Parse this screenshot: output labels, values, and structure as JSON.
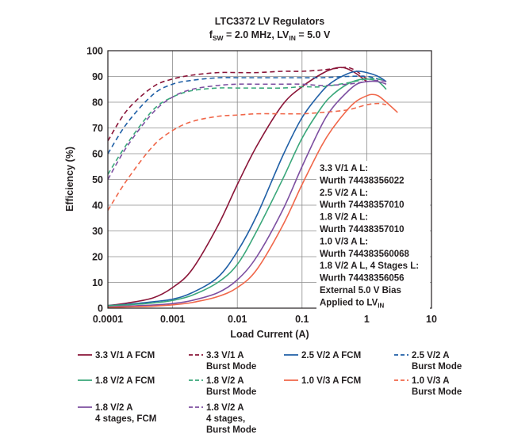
{
  "chart_data": {
    "type": "line",
    "title": "LTC3372 LV Regulators",
    "subtitle": {
      "p1": "f",
      "p1sub": "SW",
      "p2": " = 2.0 MHz, LV",
      "p2sub": "IN",
      "p3": " = 5.0 V"
    },
    "xlabel": "Load Current (A)",
    "ylabel": "Efficiency (%)",
    "x_scale": "log",
    "xlim": [
      0.0001,
      10
    ],
    "ylim": [
      0,
      100
    ],
    "grid": true,
    "x_ticks": [
      {
        "v": 0.0001,
        "label": "0.0001"
      },
      {
        "v": 0.001,
        "label": "0.001"
      },
      {
        "v": 0.01,
        "label": "0.01"
      },
      {
        "v": 0.1,
        "label": "0.1"
      },
      {
        "v": 1,
        "label": "1"
      },
      {
        "v": 10,
        "label": "10"
      }
    ],
    "y_ticks": [
      0,
      10,
      20,
      30,
      40,
      50,
      60,
      70,
      80,
      90,
      100
    ],
    "annotations": [
      "3.3 V/1 A L:",
      "Wurth 74438356022",
      "2.5 V/2 A L:",
      "Wurth 74438357010",
      "1.8 V/2 A L:",
      "Wurth 74438357010",
      "1.0 V/3 A L:",
      "Wurth 744383560068",
      "1.8 V/2 A L, 4 Stages L:",
      "Wurth 74438356056",
      "External 5.0 V Bias"
    ],
    "annotation_last": {
      "text": "Applied to LV",
      "sub": "IN"
    },
    "series": [
      {
        "name": "3.3 V/1 A FCM",
        "color": "#8a1538",
        "dash": "solid",
        "x": [
          0.0001,
          0.0002,
          0.0005,
          0.001,
          0.002,
          0.005,
          0.01,
          0.02,
          0.05,
          0.1,
          0.2,
          0.3,
          0.4,
          0.5,
          0.7,
          1.0
        ],
        "y": [
          1,
          2,
          4,
          8,
          15,
          32,
          48,
          63,
          79,
          86,
          91,
          93,
          93.5,
          93,
          91,
          88
        ]
      },
      {
        "name": "3.3 V/1 A Burst Mode",
        "color": "#8a1538",
        "dash": "dashed",
        "x": [
          0.0001,
          0.0002,
          0.0005,
          0.001,
          0.002,
          0.005,
          0.01,
          0.02,
          0.05,
          0.1,
          0.2,
          0.3,
          0.5,
          0.7,
          1.0
        ],
        "y": [
          65,
          77,
          86,
          89,
          90.5,
          91.5,
          91.5,
          91.5,
          92,
          92,
          92.5,
          93,
          93.5,
          92,
          89
        ]
      },
      {
        "name": "2.5 V/2 A FCM",
        "color": "#1f5fa6",
        "dash": "solid",
        "x": [
          0.0001,
          0.0002,
          0.0005,
          0.001,
          0.002,
          0.005,
          0.01,
          0.02,
          0.05,
          0.1,
          0.2,
          0.3,
          0.5,
          0.7,
          1.0,
          1.5,
          2.0
        ],
        "y": [
          1,
          1.5,
          2.5,
          3.5,
          6,
          12,
          22,
          36,
          59,
          74,
          84,
          88,
          91,
          92,
          91.5,
          90,
          88
        ]
      },
      {
        "name": "2.5 V/2 A Burst Mode",
        "color": "#1f5fa6",
        "dash": "dashed",
        "x": [
          0.0001,
          0.0002,
          0.0005,
          0.001,
          0.002,
          0.005,
          0.01,
          0.02,
          0.05,
          0.1,
          0.2,
          0.5,
          1.0,
          1.5,
          2.0
        ],
        "y": [
          60,
          72,
          83,
          87,
          88.5,
          89.5,
          89.5,
          89.5,
          89.5,
          89.5,
          89.5,
          90,
          90,
          89,
          88
        ]
      },
      {
        "name": "1.8 V/2 A FCM",
        "color": "#3aa77a",
        "dash": "solid",
        "x": [
          0.0001,
          0.0002,
          0.0005,
          0.001,
          0.002,
          0.005,
          0.01,
          0.02,
          0.05,
          0.1,
          0.2,
          0.3,
          0.5,
          0.7,
          1.0,
          1.5,
          2.0
        ],
        "y": [
          1,
          1.3,
          2,
          3,
          5,
          10,
          17,
          30,
          50,
          66,
          78,
          83,
          87,
          88.5,
          89,
          88,
          85
        ]
      },
      {
        "name": "1.8 V/2 A Burst Mode",
        "color": "#3aa77a",
        "dash": "dashed",
        "x": [
          0.0001,
          0.0002,
          0.0005,
          0.001,
          0.002,
          0.005,
          0.01,
          0.02,
          0.05,
          0.1,
          0.2,
          0.5,
          1.0,
          1.5,
          2.0
        ],
        "y": [
          52,
          64,
          77,
          82,
          84.5,
          85.5,
          85.5,
          85.5,
          85.5,
          86,
          86,
          87.5,
          89,
          89,
          88
        ]
      },
      {
        "name": "1.8 V/2 A 4 stages, FCM",
        "color": "#7d4fa1",
        "dash": "solid",
        "x": [
          0.0001,
          0.0002,
          0.0005,
          0.001,
          0.002,
          0.005,
          0.01,
          0.02,
          0.05,
          0.1,
          0.2,
          0.3,
          0.5,
          0.7,
          1.0,
          1.5,
          2.0
        ],
        "y": [
          0.5,
          0.8,
          1.2,
          1.8,
          3,
          6,
          11,
          20,
          38,
          55,
          71,
          78,
          84,
          87,
          88,
          88,
          87
        ]
      },
      {
        "name": "1.8 V/2 A 4 stages, Burst Mode",
        "color": "#7d4fa1",
        "dash": "dashed",
        "x": [
          0.0001,
          0.0002,
          0.0005,
          0.001,
          0.002,
          0.005,
          0.01,
          0.02,
          0.05,
          0.1,
          0.2,
          0.5,
          1.0,
          1.5,
          2.0
        ],
        "y": [
          50,
          63,
          76,
          82,
          85,
          86.5,
          87,
          87,
          87,
          87,
          86.5,
          87,
          88,
          88.5,
          88
        ]
      },
      {
        "name": "1.0 V/3 A FCM",
        "color": "#f0674a",
        "dash": "solid",
        "x": [
          0.0001,
          0.0002,
          0.0005,
          0.001,
          0.002,
          0.005,
          0.01,
          0.02,
          0.05,
          0.1,
          0.2,
          0.3,
          0.5,
          0.7,
          1.0,
          1.2,
          1.5,
          2.0,
          3.0
        ],
        "y": [
          0.3,
          0.5,
          0.8,
          1.3,
          2.2,
          4.5,
          8,
          15,
          32,
          48,
          63,
          70,
          77,
          80.5,
          82.5,
          83,
          82.5,
          80,
          76
        ]
      },
      {
        "name": "1.0 V/3 A Burst Mode",
        "color": "#f0674a",
        "dash": "dashed",
        "x": [
          0.0001,
          0.0002,
          0.0005,
          0.001,
          0.002,
          0.005,
          0.01,
          0.02,
          0.05,
          0.1,
          0.2,
          0.5,
          1.0,
          1.5,
          2.0
        ],
        "y": [
          38,
          50,
          63,
          69,
          72.5,
          74.5,
          75,
          75.5,
          75.5,
          75.5,
          76,
          77,
          79,
          79.5,
          79
        ]
      }
    ],
    "legend": {
      "placement": "bottom",
      "entries": [
        {
          "series": 0,
          "lines": [
            "3.3 V/1 A FCM"
          ]
        },
        {
          "series": 1,
          "lines": [
            "3.3 V/1 A",
            "Burst Mode"
          ]
        },
        {
          "series": 2,
          "lines": [
            "2.5 V/2 A FCM"
          ]
        },
        {
          "series": 3,
          "lines": [
            "2.5 V/2 A",
            "Burst Mode"
          ]
        },
        {
          "series": 4,
          "lines": [
            "1.8 V/2 A FCM"
          ]
        },
        {
          "series": 5,
          "lines": [
            "1.8 V/2 A",
            "Burst Mode"
          ]
        },
        {
          "series": 8,
          "lines": [
            "1.0 V/3 A FCM"
          ]
        },
        {
          "series": 9,
          "lines": [
            "1.0 V/3 A",
            "Burst Mode"
          ]
        },
        {
          "series": 6,
          "lines": [
            "1.8 V/2 A",
            "4 stages, FCM"
          ]
        },
        {
          "series": 7,
          "lines": [
            "1.8 V/2 A",
            "4 stages,",
            "Burst Mode"
          ]
        }
      ]
    }
  }
}
